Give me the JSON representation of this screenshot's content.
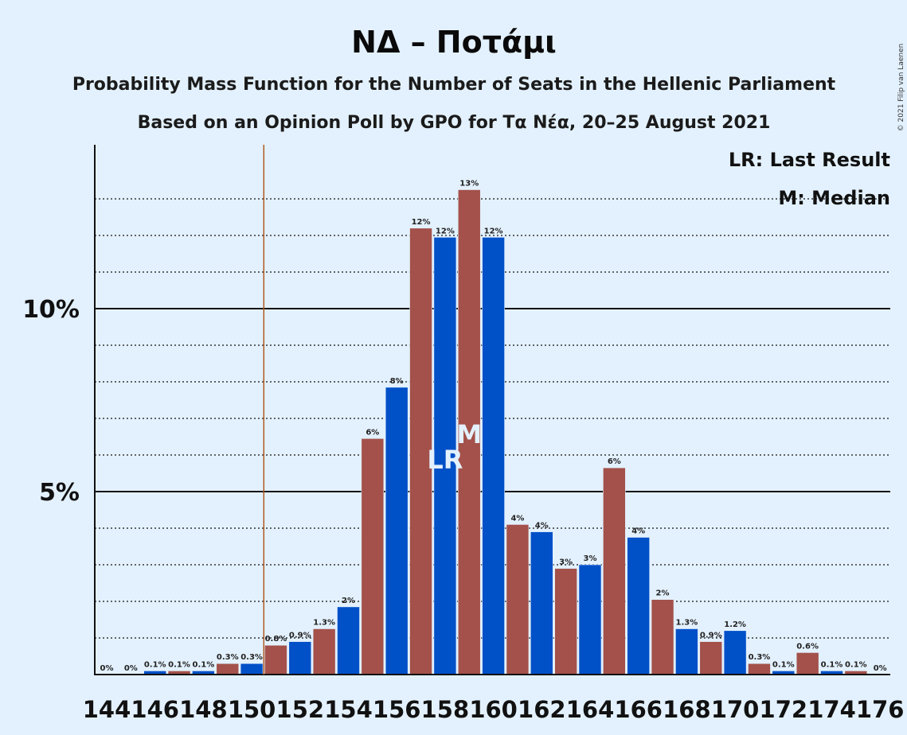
{
  "chart_data": {
    "type": "bar",
    "title": "ΝΔ – Ποτάμι",
    "subtitle": "Probability Mass Function for the Number of Seats in the Hellenic Parliament",
    "subtitle2": "Based on an Opinion Poll by GPO for Τα Νέα, 20–25 August 2021",
    "copyright": "© 2021 Filip van Laenen",
    "x": [
      144,
      145,
      146,
      147,
      148,
      149,
      150,
      151,
      152,
      153,
      154,
      155,
      156,
      157,
      158,
      159,
      160,
      161,
      162,
      163,
      164,
      165,
      166,
      167,
      168,
      169,
      170,
      171,
      172,
      173,
      174,
      175,
      176
    ],
    "values": [
      0,
      0,
      0.1,
      0.1,
      0.1,
      0.3,
      0.3,
      0.8,
      0.9,
      1.25,
      1.85,
      6.45,
      7.85,
      12.2,
      11.95,
      13.25,
      11.95,
      4.1,
      3.9,
      2.9,
      3.0,
      5.65,
      3.75,
      2.05,
      1.25,
      0.9,
      1.2,
      0.3,
      0.1,
      0.6,
      0.1,
      0.1,
      0
    ],
    "labels": [
      "0%",
      "0%",
      "0.1%",
      "0.1%",
      "0.1%",
      "0.3%",
      "0.3%",
      "0.8%",
      "0.9%",
      "1.3%",
      "2%",
      "6%",
      "8%",
      "12%",
      "12%",
      "13%",
      "12%",
      "4%",
      "4%",
      "3%",
      "3%",
      "6%",
      "4%",
      "2%",
      "1.3%",
      "0.9%",
      "1.2%",
      "0.3%",
      "0.1%",
      "0.6%",
      "0.1%",
      "0.1%",
      "0%"
    ],
    "x_tick_labels": [
      "144",
      "146",
      "148",
      "150",
      "152",
      "154",
      "156",
      "158",
      "160",
      "162",
      "164",
      "166",
      "168",
      "170",
      "172",
      "174",
      "176"
    ],
    "y_ticks": [
      {
        "value": 5,
        "label": "5%"
      },
      {
        "value": 10,
        "label": "10%"
      }
    ],
    "ylim": [
      0,
      14.5
    ],
    "last_result_seat": 151,
    "last_result_label": "LR",
    "median_seat": 159,
    "median_label": "M",
    "legend": [
      "LR: Last Result",
      "M: Median"
    ],
    "colors": {
      "blue": "#0050c8",
      "red": "#a3514a",
      "last_result_line": "#b05a20",
      "background": "#e3f1fe"
    }
  }
}
